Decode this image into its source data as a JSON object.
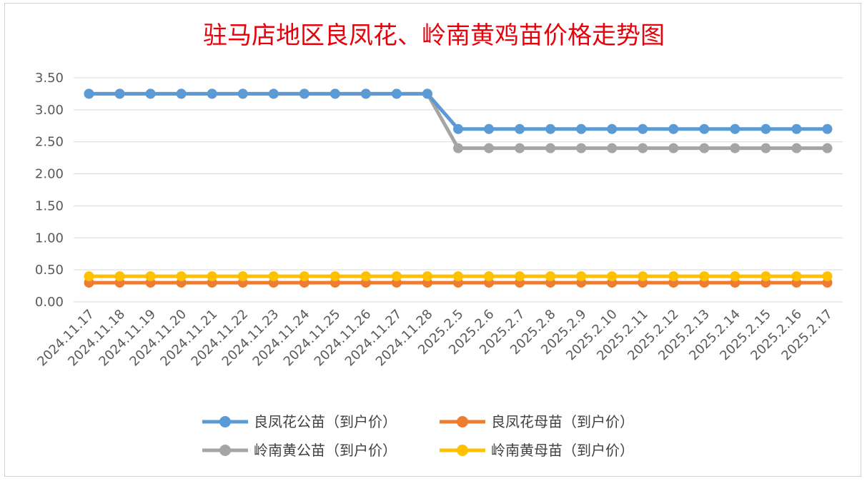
{
  "chart_data": {
    "type": "line",
    "title": "驻马店地区良凤花、岭南黄鸡苗价格走势图",
    "xlabel": "",
    "ylabel": "",
    "ylim": [
      0,
      3.5
    ],
    "yticks": [
      "0.00",
      "0.50",
      "1.00",
      "1.50",
      "2.00",
      "2.50",
      "3.00",
      "3.50"
    ],
    "grid": true,
    "legend_position": "bottom",
    "categories": [
      "2024.11.17",
      "2024.11.18",
      "2024.11.19",
      "2024.11.20",
      "2024.11.21",
      "2024.11.22",
      "2024.11.23",
      "2024.11.24",
      "2024.11.25",
      "2024.11.26",
      "2024.11.27",
      "2024.11.28",
      "2025.2.5",
      "2025.2.6",
      "2025.2.7",
      "2025.2.8",
      "2025.2.9",
      "2025.2.10",
      "2025.2.11",
      "2025.2.12",
      "2025.2.13",
      "2025.2.14",
      "2025.2.15",
      "2025.2.16",
      "2025.2.17"
    ],
    "series": [
      {
        "name": "良凤花公苗（到户价）",
        "color": "#5b9bd5",
        "values": [
          3.25,
          3.25,
          3.25,
          3.25,
          3.25,
          3.25,
          3.25,
          3.25,
          3.25,
          3.25,
          3.25,
          3.25,
          2.7,
          2.7,
          2.7,
          2.7,
          2.7,
          2.7,
          2.7,
          2.7,
          2.7,
          2.7,
          2.7,
          2.7,
          2.7
        ]
      },
      {
        "name": "良凤花母苗（到户价）",
        "color": "#ed7d31",
        "values": [
          0.3,
          0.3,
          0.3,
          0.3,
          0.3,
          0.3,
          0.3,
          0.3,
          0.3,
          0.3,
          0.3,
          0.3,
          0.3,
          0.3,
          0.3,
          0.3,
          0.3,
          0.3,
          0.3,
          0.3,
          0.3,
          0.3,
          0.3,
          0.3,
          0.3
        ]
      },
      {
        "name": "岭南黄公苗（到户价）",
        "color": "#a5a5a5",
        "values": [
          3.25,
          3.25,
          3.25,
          3.25,
          3.25,
          3.25,
          3.25,
          3.25,
          3.25,
          3.25,
          3.25,
          3.25,
          2.4,
          2.4,
          2.4,
          2.4,
          2.4,
          2.4,
          2.4,
          2.4,
          2.4,
          2.4,
          2.4,
          2.4,
          2.4
        ]
      },
      {
        "name": "岭南黄母苗（到户价）",
        "color": "#ffc000",
        "values": [
          0.4,
          0.4,
          0.4,
          0.4,
          0.4,
          0.4,
          0.4,
          0.4,
          0.4,
          0.4,
          0.4,
          0.4,
          0.4,
          0.4,
          0.4,
          0.4,
          0.4,
          0.4,
          0.4,
          0.4,
          0.4,
          0.4,
          0.4,
          0.4,
          0.4
        ]
      }
    ]
  }
}
